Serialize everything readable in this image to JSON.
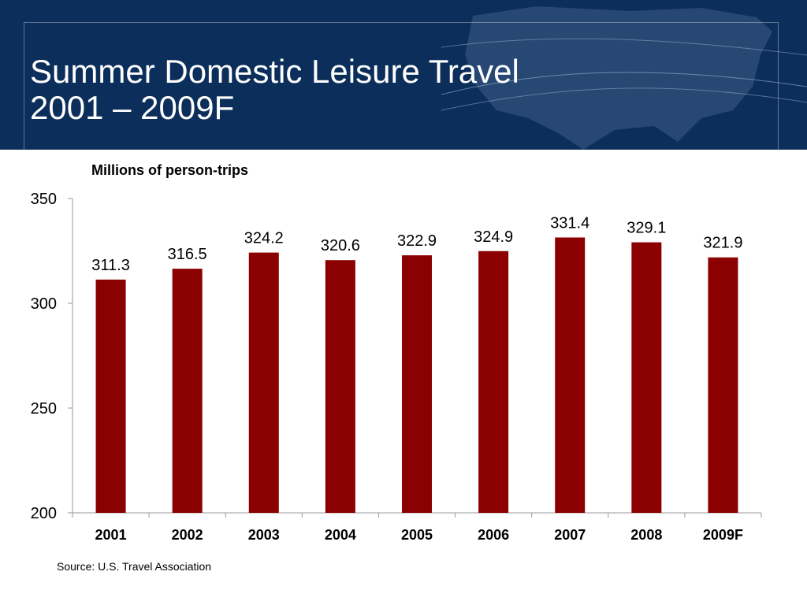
{
  "slide": {
    "title_line1": "Summer Domestic Leisure Travel",
    "title_line2": "2001 – 2009F",
    "banner_color": "#0b2e5b",
    "source": "Source:  U.S. Travel Association"
  },
  "chart_data": {
    "type": "bar",
    "title": "",
    "subtitle": "Millions of person-trips",
    "xlabel": "",
    "ylabel": "",
    "categories": [
      "2001",
      "2002",
      "2003",
      "2004",
      "2005",
      "2006",
      "2007",
      "2008",
      "2009F"
    ],
    "values": [
      311.3,
      316.5,
      324.2,
      320.6,
      322.9,
      324.9,
      331.4,
      329.1,
      321.9
    ],
    "value_labels": [
      "311.3",
      "316.5",
      "324.2",
      "320.6",
      "322.9",
      "324.9",
      "331.4",
      "329.1",
      "321.9"
    ],
    "ylim": [
      200,
      350
    ],
    "yticks": [
      "200",
      "250",
      "300",
      "350"
    ],
    "grid": false,
    "legend": "none",
    "bar_color": "#8b0000"
  }
}
